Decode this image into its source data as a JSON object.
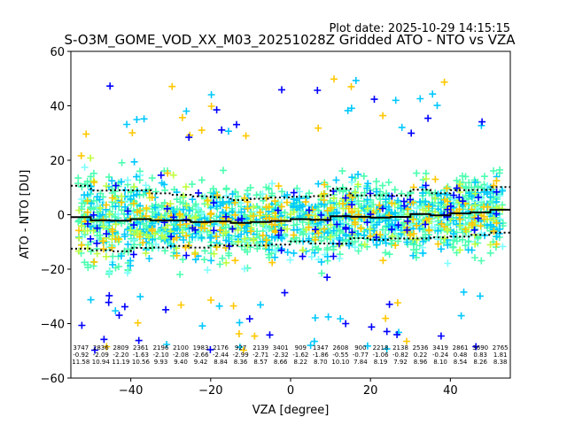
{
  "chart_data": {
    "type": "scatter",
    "title": "S-O3M_GOME_VOD_XX_M03_20251028Z Gridded ATO - NTO vs VZA",
    "plot_date": "Plot date: 2025-10-29 14:15:15",
    "xlabel": "VZA [degree]",
    "ylabel": "ATO - NTO [DU]",
    "xlim": [
      -55,
      55
    ],
    "ylim": [
      -60,
      60
    ],
    "x_ticks": [
      -40,
      -20,
      0,
      20,
      40
    ],
    "x_tick_labels": [
      "−40",
      "−20",
      "0",
      "20",
      "40"
    ],
    "y_ticks": [
      -60,
      -40,
      -20,
      0,
      20,
      40,
      60
    ],
    "y_tick_labels": [
      "−60",
      "−40",
      "−20",
      "0",
      "20",
      "40",
      "60"
    ],
    "grid": false,
    "marker": "+",
    "point_colors": [
      "#0000ff",
      "#00c8ff",
      "#4cffb0",
      "#ffc800",
      "#c0ff40",
      "#7effff"
    ],
    "bins": {
      "x": [
        -52.5,
        -47.5,
        -42.5,
        -37.5,
        -32.5,
        -27.5,
        -22.5,
        -17.5,
        -12.5,
        -7.5,
        -2.5,
        2.5,
        7.5,
        12.5,
        17.5,
        22.5,
        27.5,
        32.5,
        37.5,
        42.5,
        47.5,
        52.5
      ],
      "count": [
        "3747",
        "2836",
        "2809",
        "2361",
        "2196",
        "2100",
        "1983",
        "2176",
        "927",
        "2139",
        "3401",
        "909",
        "1347",
        "2608",
        "900",
        "2218",
        "2138",
        "2536",
        "3419",
        "2861",
        "3690",
        "2765"
      ],
      "mean": [
        "-0.92",
        "-2.09",
        "-2.20",
        "-1.63",
        "-2.10",
        "-2.08",
        "-2.66",
        "-2.44",
        "-2.99",
        "-2.71",
        "-2.32",
        "-1.62",
        "-1.86",
        "-0.55",
        "-0.77",
        "-1.06",
        "-0.82",
        "0.22",
        "-0.24",
        "0.48",
        "0.83",
        "1.81"
      ],
      "std": [
        "11.58",
        "10.94",
        "11.19",
        "10.56",
        "9.93",
        "9.40",
        "9.42",
        "8.84",
        "8.36",
        "8.57",
        "8.66",
        "8.22",
        "8.70",
        "10.10",
        "7.84",
        "8.19",
        "7.92",
        "8.96",
        "8.10",
        "8.54",
        "8.26",
        "8.38"
      ]
    }
  }
}
